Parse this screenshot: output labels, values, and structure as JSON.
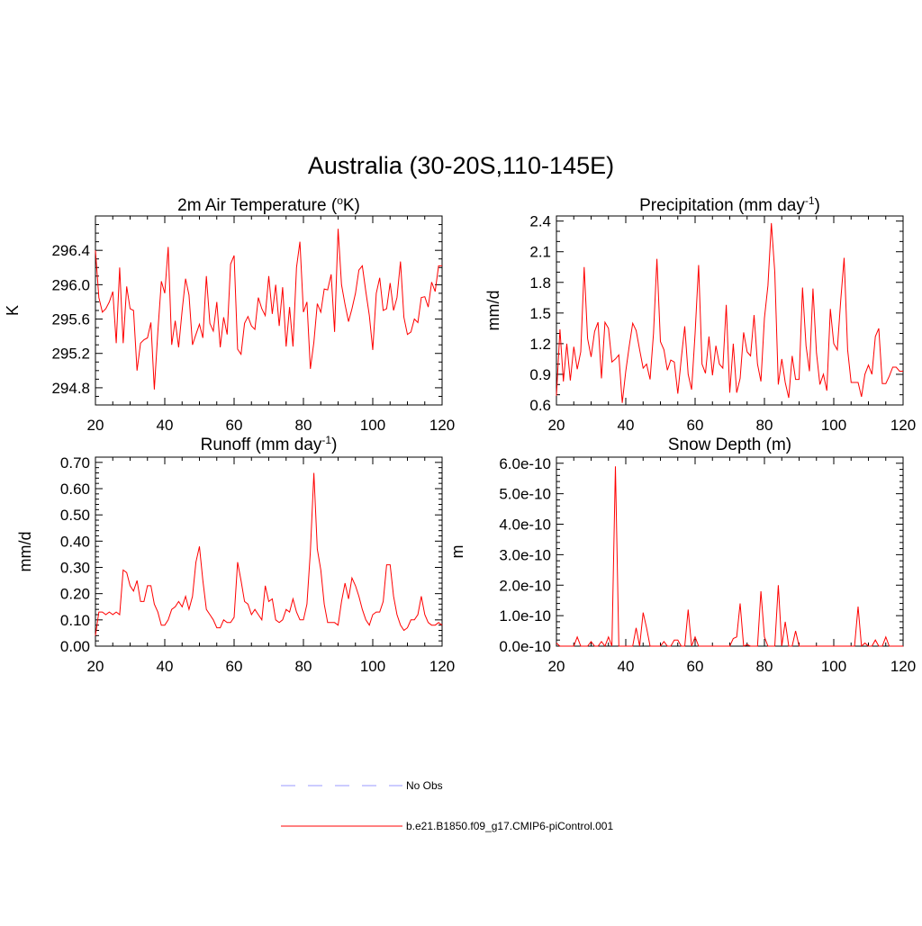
{
  "page_title": "Australia (30-20S,110-145E)",
  "legend": {
    "obs": {
      "label": "No Obs",
      "color": "#9999ff"
    },
    "model": {
      "label": "b.e21.B1850.f09_g17.CMIP6-piControl.001",
      "color": "#ff0000"
    }
  },
  "chart_data": [
    {
      "id": "temperature",
      "type": "line",
      "title": "2m Air Temperature (",
      "title_sup": "o",
      "title_end": "K)",
      "xlabel": "",
      "ylabel": "K",
      "xlim": [
        20,
        120
      ],
      "ylim": [
        294.6,
        296.8
      ],
      "xticks": [
        20,
        40,
        60,
        80,
        100,
        120
      ],
      "xtick_labels": [
        "20",
        "40",
        "60",
        "80",
        "100",
        "120"
      ],
      "yticks": [
        294.8,
        295.2,
        295.6,
        296.0,
        296.4
      ],
      "ytick_labels": [
        "294.8",
        "295.2",
        "295.6",
        "296.0",
        "296.4"
      ],
      "yminor": 0.1,
      "series": [
        {
          "name": "b.e21.B1850.f09_g17.CMIP6-piControl.001",
          "color": "#ff0000",
          "x": [
            20,
            21,
            22,
            23,
            24,
            25,
            26,
            27,
            28,
            29,
            30,
            31,
            32,
            33,
            34,
            35,
            36,
            37,
            38,
            39,
            40,
            41,
            42,
            43,
            44,
            45,
            46,
            47,
            48,
            49,
            50,
            51,
            52,
            53,
            54,
            55,
            56,
            57,
            58,
            59,
            60,
            61,
            62,
            63,
            64,
            65,
            66,
            67,
            68,
            69,
            70,
            71,
            72,
            73,
            74,
            75,
            76,
            77,
            78,
            79,
            80,
            81,
            82,
            83,
            84,
            85,
            86,
            87,
            88,
            89,
            90,
            91,
            92,
            93,
            94,
            95,
            96,
            97,
            98,
            99,
            100,
            101,
            102,
            103,
            104,
            105,
            106,
            107,
            108,
            109,
            110,
            111,
            112,
            113,
            114,
            115,
            116,
            117,
            118,
            119,
            120
          ],
          "values": [
            296.4,
            295.85,
            295.68,
            295.72,
            295.8,
            295.92,
            295.32,
            296.2,
            295.32,
            295.98,
            295.72,
            295.7,
            295.0,
            295.32,
            295.36,
            295.38,
            295.56,
            294.78,
            295.45,
            296.04,
            295.9,
            296.44,
            295.3,
            295.58,
            295.27,
            295.7,
            296.07,
            295.88,
            295.3,
            295.42,
            295.54,
            295.38,
            296.1,
            295.55,
            295.46,
            295.8,
            295.27,
            295.62,
            295.42,
            296.24,
            296.34,
            295.25,
            295.19,
            295.55,
            295.63,
            295.52,
            295.48,
            295.85,
            295.72,
            295.64,
            296.1,
            295.66,
            296.0,
            295.52,
            295.97,
            295.28,
            295.74,
            295.28,
            296.2,
            296.5,
            295.68,
            295.8,
            295.02,
            295.33,
            295.78,
            295.68,
            295.95,
            295.94,
            296.12,
            295.45,
            296.65,
            296.0,
            295.77,
            295.57,
            295.72,
            295.9,
            296.17,
            296.22,
            295.92,
            295.64,
            295.24,
            295.9,
            296.08,
            295.7,
            295.72,
            296.02,
            295.7,
            295.85,
            296.27,
            295.62,
            295.42,
            295.45,
            295.6,
            295.56,
            295.85,
            295.86,
            295.74,
            296.03,
            295.92,
            296.22,
            296.22
          ]
        }
      ]
    },
    {
      "id": "precipitation",
      "type": "line",
      "title": "Precipitation (mm day",
      "title_sup": "-1",
      "title_end": ")",
      "xlabel": "",
      "ylabel": "mm/d",
      "xlim": [
        20,
        120
      ],
      "ylim": [
        0.6,
        2.45
      ],
      "xticks": [
        20,
        40,
        60,
        80,
        100,
        120
      ],
      "xtick_labels": [
        "20",
        "40",
        "60",
        "80",
        "100",
        "120"
      ],
      "yticks": [
        0.6,
        0.9,
        1.2,
        1.5,
        1.8,
        2.1,
        2.4
      ],
      "ytick_labels": [
        "0.6",
        "0.9",
        "1.2",
        "1.5",
        "1.8",
        "2.1",
        "2.4"
      ],
      "yminor": 0.1,
      "series": [
        {
          "name": "b.e21.B1850.f09_g17.CMIP6-piControl.001",
          "color": "#ff0000",
          "x": [
            20,
            21,
            22,
            23,
            24,
            25,
            26,
            27,
            28,
            29,
            30,
            31,
            32,
            33,
            34,
            35,
            36,
            37,
            38,
            39,
            40,
            41,
            42,
            43,
            44,
            45,
            46,
            47,
            48,
            49,
            50,
            51,
            52,
            53,
            54,
            55,
            56,
            57,
            58,
            59,
            60,
            61,
            62,
            63,
            64,
            65,
            66,
            67,
            68,
            69,
            70,
            71,
            72,
            73,
            74,
            75,
            76,
            77,
            78,
            79,
            80,
            81,
            82,
            83,
            84,
            85,
            86,
            87,
            88,
            89,
            90,
            91,
            92,
            93,
            94,
            95,
            96,
            97,
            98,
            99,
            100,
            101,
            102,
            103,
            104,
            105,
            106,
            107,
            108,
            109,
            110,
            111,
            112,
            113,
            114,
            115,
            116,
            117,
            118,
            119,
            120
          ],
          "values": [
            0.69,
            1.34,
            0.83,
            1.2,
            0.84,
            1.17,
            0.95,
            1.12,
            1.95,
            1.25,
            1.07,
            1.32,
            1.41,
            0.86,
            1.41,
            1.35,
            1.02,
            1.05,
            1.09,
            0.62,
            0.93,
            1.18,
            1.4,
            1.33,
            1.14,
            0.96,
            1.0,
            0.85,
            1.3,
            2.03,
            1.22,
            1.14,
            0.94,
            1.04,
            1.02,
            0.71,
            1.05,
            1.37,
            0.9,
            0.75,
            1.3,
            1.97,
            1.0,
            0.91,
            1.27,
            0.89,
            1.18,
            1.0,
            0.96,
            1.58,
            0.72,
            1.2,
            0.72,
            0.86,
            1.31,
            1.12,
            1.08,
            1.48,
            1.0,
            0.83,
            1.45,
            1.77,
            2.38,
            1.9,
            0.8,
            1.05,
            0.82,
            0.67,
            1.08,
            0.85,
            0.85,
            1.75,
            1.18,
            0.93,
            1.74,
            1.11,
            0.8,
            0.9,
            0.74,
            1.54,
            1.2,
            1.14,
            1.62,
            2.04,
            1.14,
            0.82,
            0.82,
            0.82,
            0.68,
            0.9,
            0.99,
            0.9,
            1.27,
            1.35,
            0.81,
            0.81,
            0.88,
            0.97,
            0.97,
            0.93,
            0.93
          ]
        }
      ]
    },
    {
      "id": "runoff",
      "type": "line",
      "title": "Runoff (mm day",
      "title_sup": "-1",
      "title_end": ")",
      "xlabel": "",
      "ylabel": "mm/d",
      "xlim": [
        20,
        120
      ],
      "ylim": [
        0.0,
        0.72
      ],
      "xticks": [
        20,
        40,
        60,
        80,
        100,
        120
      ],
      "xtick_labels": [
        "20",
        "40",
        "60",
        "80",
        "100",
        "120"
      ],
      "yticks": [
        0.0,
        0.1,
        0.2,
        0.3,
        0.4,
        0.5,
        0.6,
        0.7
      ],
      "ytick_labels": [
        "0.00",
        "0.10",
        "0.20",
        "0.30",
        "0.40",
        "0.50",
        "0.60",
        "0.70"
      ],
      "yminor": 0.02,
      "series": [
        {
          "name": "b.e21.B1850.f09_g17.CMIP6-piControl.001",
          "color": "#ff0000",
          "x": [
            20,
            21,
            22,
            23,
            24,
            25,
            26,
            27,
            28,
            29,
            30,
            31,
            32,
            33,
            34,
            35,
            36,
            37,
            38,
            39,
            40,
            41,
            42,
            43,
            44,
            45,
            46,
            47,
            48,
            49,
            50,
            51,
            52,
            53,
            54,
            55,
            56,
            57,
            58,
            59,
            60,
            61,
            62,
            63,
            64,
            65,
            66,
            67,
            68,
            69,
            70,
            71,
            72,
            73,
            74,
            75,
            76,
            77,
            78,
            79,
            80,
            81,
            82,
            83,
            84,
            85,
            86,
            87,
            88,
            89,
            90,
            91,
            92,
            93,
            94,
            95,
            96,
            97,
            98,
            99,
            100,
            101,
            102,
            103,
            104,
            105,
            106,
            107,
            108,
            109,
            110,
            111,
            112,
            113,
            114,
            115,
            116,
            117,
            118,
            119,
            120
          ],
          "values": [
            0.04,
            0.13,
            0.13,
            0.12,
            0.13,
            0.12,
            0.13,
            0.12,
            0.29,
            0.28,
            0.23,
            0.21,
            0.25,
            0.17,
            0.17,
            0.23,
            0.23,
            0.16,
            0.13,
            0.08,
            0.08,
            0.1,
            0.14,
            0.15,
            0.17,
            0.15,
            0.19,
            0.14,
            0.19,
            0.32,
            0.38,
            0.25,
            0.14,
            0.12,
            0.1,
            0.07,
            0.07,
            0.1,
            0.09,
            0.09,
            0.11,
            0.32,
            0.25,
            0.17,
            0.16,
            0.12,
            0.14,
            0.12,
            0.1,
            0.23,
            0.17,
            0.18,
            0.1,
            0.09,
            0.1,
            0.14,
            0.13,
            0.18,
            0.13,
            0.1,
            0.1,
            0.16,
            0.36,
            0.66,
            0.37,
            0.29,
            0.16,
            0.09,
            0.09,
            0.09,
            0.08,
            0.17,
            0.24,
            0.18,
            0.26,
            0.23,
            0.19,
            0.14,
            0.1,
            0.08,
            0.12,
            0.13,
            0.13,
            0.17,
            0.31,
            0.31,
            0.19,
            0.12,
            0.08,
            0.06,
            0.07,
            0.1,
            0.1,
            0.12,
            0.19,
            0.12,
            0.09,
            0.08,
            0.08,
            0.09,
            0.08
          ]
        }
      ]
    },
    {
      "id": "snow",
      "type": "line",
      "title": "Snow Depth (m)",
      "title_sup": "",
      "title_end": "",
      "xlabel": "",
      "ylabel": "m",
      "xlim": [
        20,
        120
      ],
      "ylim": [
        0.0,
        6.2e-10
      ],
      "xticks": [
        20,
        40,
        60,
        80,
        100,
        120
      ],
      "xtick_labels": [
        "20",
        "40",
        "60",
        "80",
        "100",
        "120"
      ],
      "yticks": [
        0.0,
        1e-10,
        2e-10,
        3e-10,
        4e-10,
        5e-10,
        6e-10
      ],
      "ytick_labels": [
        "0.0e-10",
        "1.0e-10",
        "2.0e-10",
        "3.0e-10",
        "4.0e-10",
        "5.0e-10",
        "6.0e-10"
      ],
      "yminor": 2e-11,
      "series": [
        {
          "name": "b.e21.B1850.f09_g17.CMIP6-piControl.001",
          "color": "#ff0000",
          "x": [
            20,
            21,
            22,
            23,
            24,
            25,
            26,
            27,
            28,
            29,
            30,
            31,
            32,
            33,
            34,
            35,
            36,
            37,
            38,
            39,
            40,
            41,
            42,
            43,
            44,
            45,
            46,
            47,
            48,
            49,
            50,
            51,
            52,
            53,
            54,
            55,
            56,
            57,
            58,
            59,
            60,
            61,
            62,
            63,
            64,
            65,
            66,
            67,
            68,
            69,
            70,
            71,
            72,
            73,
            74,
            75,
            76,
            77,
            78,
            79,
            80,
            81,
            82,
            83,
            84,
            85,
            86,
            87,
            88,
            89,
            90,
            91,
            92,
            93,
            94,
            95,
            96,
            97,
            98,
            99,
            100,
            101,
            102,
            103,
            104,
            105,
            106,
            107,
            108,
            109,
            110,
            111,
            112,
            113,
            114,
            115,
            116,
            117,
            118,
            119,
            120
          ],
          "values": [
            1e-11,
            0,
            0,
            0,
            0,
            0,
            3e-11,
            0,
            0,
            0,
            1.5e-11,
            0,
            0,
            1.5e-11,
            0,
            3e-11,
            0,
            5.9e-10,
            0,
            0,
            0,
            0,
            0,
            6e-11,
            0,
            1.1e-10,
            6e-11,
            0,
            0,
            0,
            0,
            1.5e-11,
            0,
            0,
            2e-11,
            2e-11,
            0,
            0,
            1.2e-10,
            0,
            3e-11,
            0,
            0,
            0,
            0,
            0,
            0,
            0,
            0,
            0,
            0,
            2.5e-11,
            3e-11,
            1.4e-10,
            0,
            5e-12,
            0,
            0,
            0,
            1.8e-10,
            3e-11,
            0,
            0,
            0,
            2e-10,
            0,
            8e-11,
            0,
            0,
            5e-11,
            0,
            0,
            0,
            0,
            0,
            0,
            0,
            0,
            0,
            0,
            0,
            0,
            0,
            0,
            0,
            0,
            0,
            1.3e-10,
            0,
            1e-11,
            0,
            0,
            2e-11,
            0,
            0,
            3e-11,
            0,
            0,
            0,
            0,
            0
          ]
        }
      ]
    }
  ]
}
